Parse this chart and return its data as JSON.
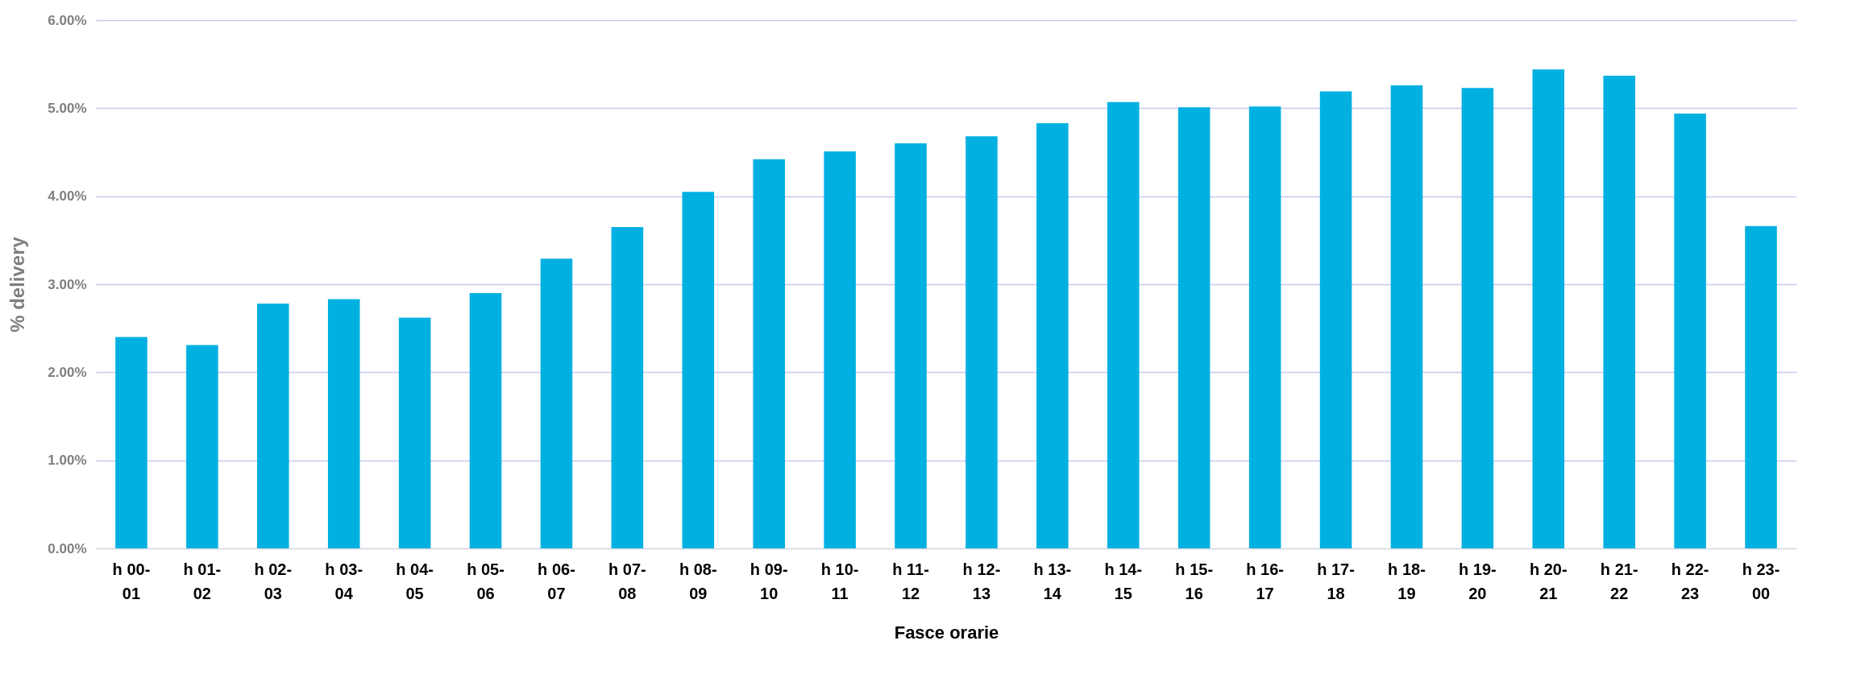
{
  "chart_data": {
    "type": "bar",
    "xlabel": "Fasce orarie",
    "ylabel": "% delivery",
    "categories": [
      "h 00-01",
      "h 01-02",
      "h 02-03",
      "h 03-04",
      "h 04-05",
      "h 05-06",
      "h 06-07",
      "h 07-08",
      "h 08-09",
      "h 09-10",
      "h 10-11",
      "h 11-12",
      "h 12-13",
      "h 13-14",
      "h 14-15",
      "h 15-16",
      "h 16-17",
      "h 17-18",
      "h 18-19",
      "h 19-20",
      "h 20-21",
      "h 21-22",
      "h 22-23",
      "h 23-00"
    ],
    "values": [
      2.4,
      2.31,
      2.78,
      2.83,
      2.62,
      2.9,
      3.29,
      3.65,
      4.05,
      4.42,
      4.51,
      4.6,
      4.68,
      4.83,
      5.07,
      5.01,
      5.02,
      5.19,
      5.26,
      5.23,
      5.44,
      5.37,
      4.94,
      3.66
    ],
    "color": "#00b0e0",
    "ylim": [
      0,
      6
    ],
    "yticks": [
      {
        "value": 0,
        "label": "0.00%"
      },
      {
        "value": 1,
        "label": "1.00%"
      },
      {
        "value": 2,
        "label": "2.00%"
      },
      {
        "value": 3,
        "label": "3.00%"
      },
      {
        "value": 4,
        "label": "4.00%"
      },
      {
        "value": 5,
        "label": "5.00%"
      },
      {
        "value": 6,
        "label": "6.00%"
      }
    ],
    "grid": "y"
  }
}
